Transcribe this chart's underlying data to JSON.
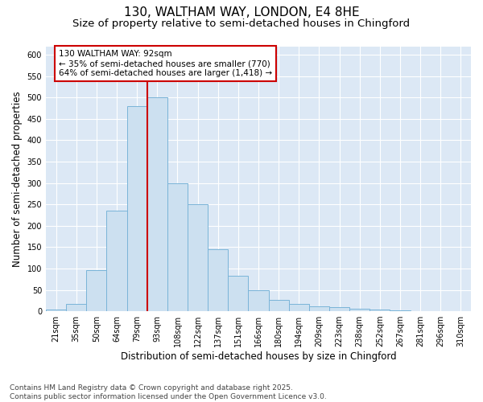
{
  "title_line1": "130, WALTHAM WAY, LONDON, E4 8HE",
  "title_line2": "Size of property relative to semi-detached houses in Chingford",
  "xlabel": "Distribution of semi-detached houses by size in Chingford",
  "ylabel": "Number of semi-detached properties",
  "categories": [
    "21sqm",
    "35sqm",
    "50sqm",
    "64sqm",
    "79sqm",
    "93sqm",
    "108sqm",
    "122sqm",
    "137sqm",
    "151sqm",
    "166sqm",
    "180sqm",
    "194sqm",
    "209sqm",
    "223sqm",
    "238sqm",
    "252sqm",
    "267sqm",
    "281sqm",
    "296sqm",
    "310sqm"
  ],
  "values": [
    3,
    18,
    97,
    235,
    480,
    500,
    300,
    250,
    145,
    82,
    50,
    27,
    17,
    12,
    9,
    6,
    3,
    2,
    1,
    1,
    0
  ],
  "bar_color": "#cce0f0",
  "bar_edge_color": "#7ab4d8",
  "vline_color": "#cc0000",
  "annotation_title": "130 WALTHAM WAY: 92sqm",
  "annotation_line1": "← 35% of semi-detached houses are smaller (770)",
  "annotation_line2": "64% of semi-detached houses are larger (1,418) →",
  "annotation_box_facecolor": "#ffffff",
  "annotation_box_edgecolor": "#cc0000",
  "ylim": [
    0,
    620
  ],
  "yticks": [
    0,
    50,
    100,
    150,
    200,
    250,
    300,
    350,
    400,
    450,
    500,
    550,
    600
  ],
  "background_color": "#dce8f5",
  "grid_color": "#ffffff",
  "footer_line1": "Contains HM Land Registry data © Crown copyright and database right 2025.",
  "footer_line2": "Contains public sector information licensed under the Open Government Licence v3.0.",
  "title_fontsize": 11,
  "subtitle_fontsize": 9.5,
  "axis_label_fontsize": 8.5,
  "tick_fontsize": 7,
  "annotation_fontsize": 7.5,
  "footer_fontsize": 6.5
}
